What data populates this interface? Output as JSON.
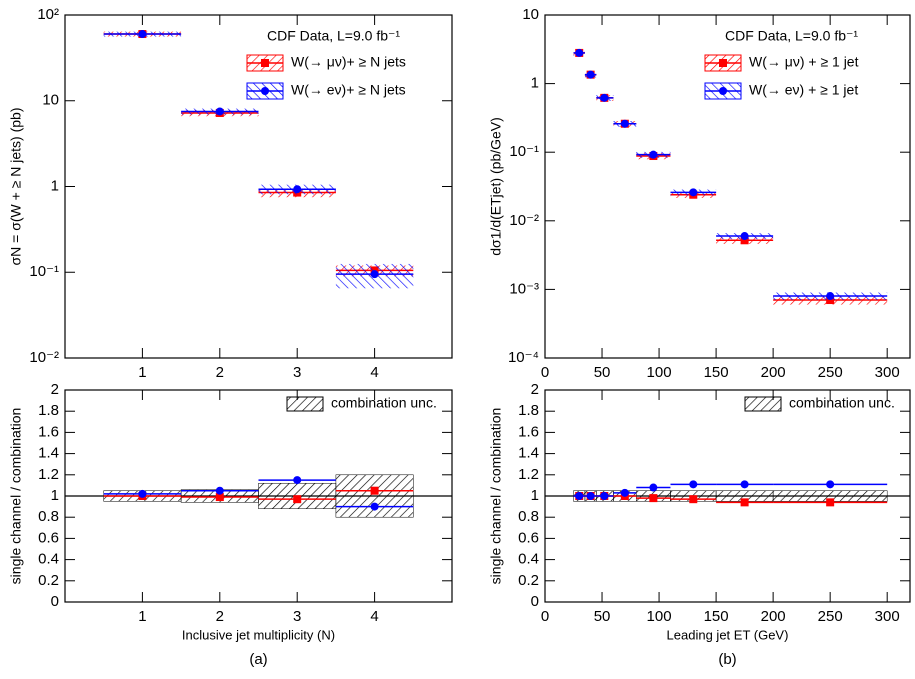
{
  "chart_data": [
    {
      "type": "errorbar",
      "ylabel": "σN = σ(W + ≥ N jets) (pb)",
      "log_y": true,
      "xlim": [
        0,
        5
      ],
      "xticks": [
        1,
        2,
        3,
        4
      ],
      "ylim": [
        0.01,
        100
      ],
      "yticks": [
        {
          "value": 0.01,
          "label": "10⁻²"
        },
        {
          "value": 0.1,
          "label": "10⁻¹"
        },
        1,
        10,
        {
          "value": 100,
          "label": "10²"
        }
      ],
      "legend": "upper right",
      "legend_title": "CDF Data, L=9.0 fb⁻¹",
      "x": [
        1,
        2,
        3,
        4
      ],
      "bins": [
        0.5,
        1.5,
        2.5,
        3.5,
        4.5
      ],
      "series": [
        {
          "name": "W(→ μν)+ ≥ N jets",
          "color": "#ff0000",
          "marker": "square",
          "hatch": "/",
          "values": [
            60,
            7.2,
            0.85,
            0.105
          ],
          "errors": [
            4,
            0.6,
            0.1,
            0.015
          ]
        },
        {
          "name": "W(→ eν)+ ≥ N jets",
          "color": "#0000ff",
          "marker": "circle",
          "hatch": "\\",
          "values": [
            60,
            7.5,
            0.93,
            0.095
          ],
          "errors": [
            4,
            0.6,
            0.12,
            0.03
          ]
        }
      ]
    },
    {
      "type": "errorbar",
      "ylabel": "dσ1/d(ETjet) (pb/GeV)",
      "log_y": true,
      "xlim": [
        0,
        320
      ],
      "xticks": [
        0,
        50,
        100,
        150,
        200,
        250,
        300
      ],
      "ylim": [
        0.0001,
        10
      ],
      "yticks": [
        {
          "value": 0.0001,
          "label": "10⁻⁴"
        },
        {
          "value": 0.001,
          "label": "10⁻³"
        },
        {
          "value": 0.01,
          "label": "10⁻²"
        },
        {
          "value": 0.1,
          "label": "10⁻¹"
        },
        1,
        10
      ],
      "legend": "upper right",
      "legend_title": "CDF Data, L=9.0 fb⁻¹",
      "x": [
        30,
        40,
        52,
        70,
        95,
        130,
        175,
        250
      ],
      "bins": [
        25,
        35,
        45,
        60,
        80,
        110,
        150,
        200,
        300
      ],
      "series": [
        {
          "name": "W(→ μν) + ≥ 1 jet",
          "color": "#ff0000",
          "marker": "square",
          "hatch": "/",
          "values": [
            2.8,
            1.35,
            0.62,
            0.26,
            0.088,
            0.024,
            0.0052,
            0.0007
          ],
          "errors": [
            0.25,
            0.12,
            0.06,
            0.025,
            0.009,
            0.0025,
            0.0006,
            0.0001
          ]
        },
        {
          "name": "W(→ eν) + ≥ 1 jet",
          "color": "#0000ff",
          "marker": "circle",
          "hatch": "\\",
          "values": [
            2.8,
            1.35,
            0.62,
            0.26,
            0.092,
            0.026,
            0.006,
            0.0008
          ],
          "errors": [
            0.25,
            0.12,
            0.06,
            0.025,
            0.009,
            0.0025,
            0.0006,
            0.0001
          ]
        }
      ]
    },
    {
      "type": "ratio",
      "ylabel": "single channel / combination",
      "xlabel": "Inclusive jet multiplicity (N)",
      "caption": "(a)",
      "xlim": [
        0,
        5
      ],
      "xticks": [
        1,
        2,
        3,
        4
      ],
      "ylim": [
        0,
        2
      ],
      "yticks": [
        0,
        0.2,
        0.4,
        0.6,
        0.8,
        1,
        1.2,
        1.4,
        1.6,
        1.8,
        2
      ],
      "refline": 1,
      "x": [
        1,
        2,
        3,
        4
      ],
      "bins": [
        0.5,
        1.5,
        2.5,
        3.5,
        4.5
      ],
      "band": {
        "name": "combination unc.",
        "color": "#000000",
        "hatch": "/",
        "errors": [
          0.05,
          0.06,
          0.12,
          0.2
        ]
      },
      "series": [
        {
          "color": "#ff0000",
          "marker": "square",
          "values": [
            1.0,
            0.99,
            0.97,
            1.05
          ]
        },
        {
          "color": "#0000ff",
          "marker": "circle",
          "values": [
            1.02,
            1.05,
            1.15,
            0.9
          ]
        }
      ]
    },
    {
      "type": "ratio",
      "ylabel": "single channel / combination",
      "xlabel": "Leading jet ET (GeV)",
      "caption": "(b)",
      "xlim": [
        0,
        320
      ],
      "xticks": [
        0,
        50,
        100,
        150,
        200,
        250,
        300
      ],
      "ylim": [
        0,
        2
      ],
      "yticks": [
        0,
        0.2,
        0.4,
        0.6,
        0.8,
        1,
        1.2,
        1.4,
        1.6,
        1.8,
        2
      ],
      "refline": 1,
      "x": [
        30,
        40,
        52,
        70,
        95,
        130,
        175,
        250
      ],
      "bins": [
        25,
        35,
        45,
        60,
        80,
        110,
        150,
        200,
        300
      ],
      "band": {
        "name": "combination unc.",
        "color": "#000000",
        "hatch": "/",
        "errors": [
          0.05,
          0.05,
          0.05,
          0.05,
          0.05,
          0.05,
          0.05,
          0.05
        ]
      },
      "series": [
        {
          "color": "#ff0000",
          "marker": "square",
          "values": [
            1.0,
            1.0,
            1.0,
            1.0,
            0.98,
            0.97,
            0.94,
            0.94
          ]
        },
        {
          "color": "#0000ff",
          "marker": "circle",
          "values": [
            1.0,
            1.0,
            1.0,
            1.03,
            1.08,
            1.11,
            1.11,
            1.11
          ]
        }
      ]
    }
  ]
}
